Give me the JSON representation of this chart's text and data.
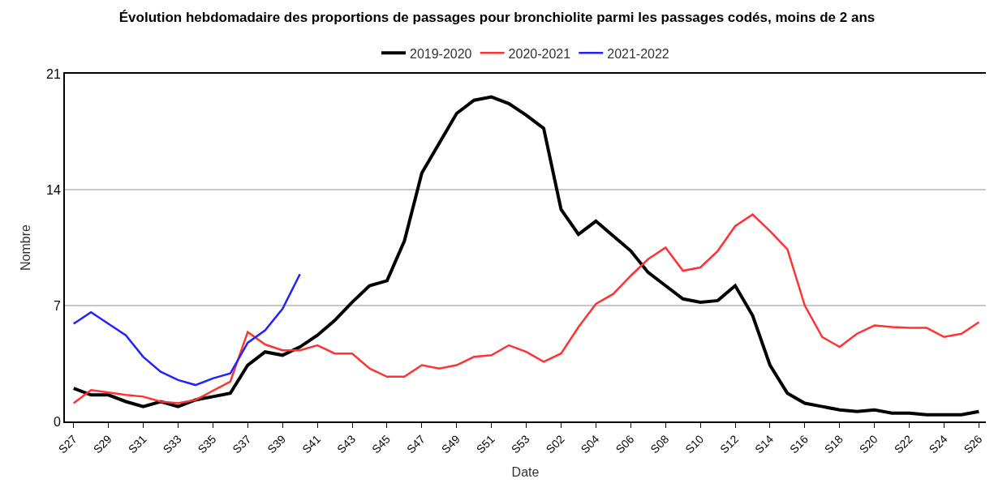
{
  "chart_data": {
    "type": "line",
    "title": "Évolution hebdomadaire des proportions de passages pour bronchiolite parmi les passages codés, moins de 2 ans",
    "xlabel": "Date",
    "ylabel": "Nombre",
    "categories": [
      "S27",
      null,
      "S29",
      null,
      "S31",
      null,
      "S33",
      null,
      "S35",
      null,
      "S37",
      null,
      "S39",
      null,
      "S41",
      null,
      "S43",
      null,
      "S45",
      null,
      "S47",
      null,
      "S49",
      null,
      "S51",
      null,
      "S53",
      null,
      "S02",
      null,
      "S04",
      null,
      "S06",
      null,
      "S08",
      null,
      "S10",
      null,
      "S12",
      null,
      "S14",
      null,
      "S16",
      null,
      "S18",
      null,
      "S20",
      null,
      "S22",
      null,
      "S24",
      null,
      "S26"
    ],
    "series": [
      {
        "name": "2019-2020",
        "color": "#000000",
        "values": [
          2.0,
          1.6,
          1.6,
          1.2,
          0.9,
          1.2,
          0.9,
          1.3,
          1.5,
          1.7,
          3.4,
          4.2,
          4.0,
          4.5,
          5.2,
          6.1,
          7.2,
          8.2,
          8.5,
          10.9,
          15.0,
          16.8,
          18.6,
          19.4,
          19.6,
          19.2,
          18.5,
          17.7,
          12.8,
          11.3,
          12.1,
          11.2,
          10.3,
          9.0,
          8.2,
          7.4,
          7.2,
          7.3,
          8.2,
          6.4,
          3.4,
          1.7,
          1.1,
          0.9,
          0.7,
          0.6,
          0.7,
          0.5,
          0.5,
          0.4,
          0.4,
          0.4,
          0.6
        ]
      },
      {
        "name": "2020-2021",
        "color": "#ff3333",
        "values": [
          1.1,
          1.9,
          1.75,
          1.6,
          1.5,
          1.2,
          1.1,
          1.3,
          1.85,
          2.4,
          5.4,
          4.65,
          4.3,
          4.3,
          4.6,
          4.1,
          4.1,
          3.2,
          2.7,
          2.7,
          3.4,
          3.2,
          3.4,
          3.9,
          4.0,
          4.6,
          4.2,
          3.6,
          4.1,
          5.7,
          7.1,
          7.7,
          8.8,
          9.8,
          10.5,
          9.1,
          9.3,
          10.3,
          11.8,
          12.5,
          11.5,
          10.4,
          7.0,
          5.1,
          4.5,
          5.3,
          5.8,
          5.7,
          5.65,
          5.65,
          5.1,
          5.3,
          6.0
        ]
      },
      {
        "name": "2021-2022",
        "color": "#2222ff",
        "values": [
          5.9,
          6.6,
          5.9,
          5.2,
          3.9,
          3.0,
          2.5,
          2.2,
          2.6,
          2.9,
          4.75,
          5.5,
          6.8,
          8.9,
          null,
          null,
          null,
          null,
          null,
          null,
          null,
          null,
          null,
          null,
          null,
          null,
          null,
          null,
          null,
          null,
          null,
          null,
          null,
          null,
          null,
          null,
          null,
          null,
          null,
          null,
          null,
          null,
          null,
          null,
          null,
          null,
          null,
          null,
          null,
          null,
          null,
          null,
          null
        ]
      }
    ],
    "ylim": [
      0,
      21
    ],
    "yticks": [
      0,
      7,
      14,
      21
    ],
    "grid": "y",
    "legend": "top",
    "marker": "none",
    "line_style": "solid"
  }
}
